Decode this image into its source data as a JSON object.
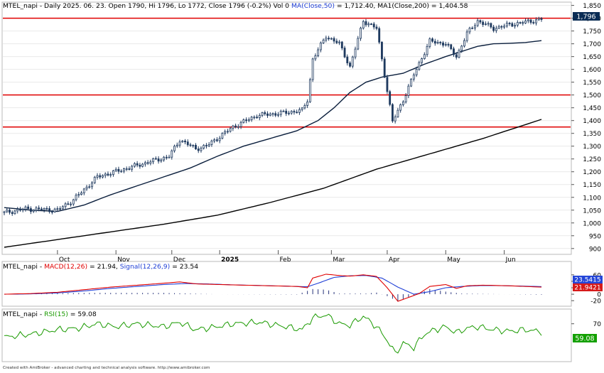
{
  "chart_data": [
    {
      "type": "candlestick",
      "panel": "price",
      "header": {
        "symbol": "MTEL_napi",
        "rest": " - Daily 2025. 06. 23. Open 1790, Hi 1796, Lo 1772, Close 1796 (-0.2%) Vol 0 ",
        "ma_label": "MA(Close,50)",
        "ma_value": " = 1,712.40, ",
        "ma1_label": "MA1(Close,200)",
        "ma1_value": " = 1,404.58"
      },
      "ylim": [
        880,
        1860
      ],
      "y_ticks": [
        900,
        950,
        1000,
        1050,
        1100,
        1150,
        1200,
        1250,
        1300,
        1350,
        1400,
        1450,
        1500,
        1550,
        1600,
        1650,
        1700,
        1750,
        1800,
        1850
      ],
      "y_tick_labels": [
        "900",
        "950",
        "1,000",
        "1,050",
        "1,100",
        "1,150",
        "1,200",
        "1,250",
        "1,300",
        "1,350",
        "1,400",
        "1,450",
        "1,500",
        "1,550",
        "1,600",
        "1,650",
        "1,700",
        "1,750",
        "1,800",
        "1,850"
      ],
      "x_ticks": [
        {
          "day": 20,
          "label": "Oct",
          "bold": false
        },
        {
          "day": 42,
          "label": "Nov",
          "bold": false
        },
        {
          "day": 63,
          "label": "Dec",
          "bold": false
        },
        {
          "day": 81,
          "label": "2025",
          "bold": true
        },
        {
          "day": 103,
          "label": "Feb",
          "bold": false
        },
        {
          "day": 123,
          "label": "Mar",
          "bold": false
        },
        {
          "day": 144,
          "label": "Apr",
          "bold": false
        },
        {
          "day": 166,
          "label": "May",
          "bold": false
        },
        {
          "day": 188,
          "label": "Jun",
          "bold": false
        }
      ],
      "hlines": [
        1800,
        1500,
        1375
      ],
      "last_price_label": "1,796",
      "days": 203,
      "close_anchors": [
        [
          0,
          1040
        ],
        [
          8,
          1055
        ],
        [
          20,
          1050
        ],
        [
          26,
          1090
        ],
        [
          35,
          1180
        ],
        [
          45,
          1210
        ],
        [
          55,
          1240
        ],
        [
          62,
          1260
        ],
        [
          66,
          1325
        ],
        [
          72,
          1290
        ],
        [
          76,
          1300
        ],
        [
          86,
          1375
        ],
        [
          95,
          1420
        ],
        [
          105,
          1430
        ],
        [
          112,
          1440
        ],
        [
          114,
          1480
        ],
        [
          116,
          1640
        ],
        [
          121,
          1730
        ],
        [
          126,
          1700
        ],
        [
          130,
          1610
        ],
        [
          135,
          1790
        ],
        [
          140,
          1760
        ],
        [
          142,
          1640
        ],
        [
          146,
          1395
        ],
        [
          150,
          1480
        ],
        [
          154,
          1580
        ],
        [
          160,
          1710
        ],
        [
          166,
          1700
        ],
        [
          170,
          1650
        ],
        [
          174,
          1740
        ],
        [
          178,
          1790
        ],
        [
          184,
          1760
        ],
        [
          190,
          1775
        ],
        [
          196,
          1785
        ],
        [
          202,
          1796
        ]
      ],
      "ma50_anchors": [
        [
          0,
          1060
        ],
        [
          10,
          1050
        ],
        [
          20,
          1045
        ],
        [
          30,
          1070
        ],
        [
          40,
          1110
        ],
        [
          50,
          1145
        ],
        [
          60,
          1180
        ],
        [
          70,
          1215
        ],
        [
          80,
          1260
        ],
        [
          90,
          1300
        ],
        [
          100,
          1330
        ],
        [
          110,
          1360
        ],
        [
          118,
          1400
        ],
        [
          124,
          1450
        ],
        [
          130,
          1510
        ],
        [
          136,
          1550
        ],
        [
          142,
          1570
        ],
        [
          150,
          1585
        ],
        [
          158,
          1620
        ],
        [
          166,
          1650
        ],
        [
          172,
          1670
        ],
        [
          178,
          1690
        ],
        [
          184,
          1700
        ],
        [
          190,
          1702
        ],
        [
          196,
          1705
        ],
        [
          202,
          1712.4
        ]
      ],
      "ma200_anchors": [
        [
          0,
          905
        ],
        [
          20,
          935
        ],
        [
          40,
          965
        ],
        [
          60,
          995
        ],
        [
          80,
          1030
        ],
        [
          100,
          1080
        ],
        [
          120,
          1135
        ],
        [
          140,
          1210
        ],
        [
          160,
          1270
        ],
        [
          180,
          1330
        ],
        [
          202,
          1404.58
        ]
      ]
    },
    {
      "type": "line",
      "panel": "macd",
      "header": {
        "symbol": "MTEL_napi",
        "macd_label": "MACD(12,26)",
        "macd_value": " = 21.94, ",
        "signal_label": "Signal(12,26,9)",
        "signal_value": " = 23.54"
      },
      "ylim": [
        -35,
        75
      ],
      "y_ticks": [
        -20,
        0,
        20,
        40,
        60
      ],
      "y_tick_labels": [
        "-20",
        "0",
        "20",
        "40",
        "60"
      ],
      "signal_value_label": "23.5415",
      "macd_value_label": "21.9421",
      "macd_anchors": [
        [
          0,
          0
        ],
        [
          10,
          2
        ],
        [
          20,
          6
        ],
        [
          30,
          14
        ],
        [
          40,
          22
        ],
        [
          50,
          28
        ],
        [
          60,
          34
        ],
        [
          66,
          38
        ],
        [
          72,
          32
        ],
        [
          80,
          30
        ],
        [
          90,
          28
        ],
        [
          100,
          26
        ],
        [
          110,
          24
        ],
        [
          114,
          20
        ],
        [
          116,
          50
        ],
        [
          121,
          62
        ],
        [
          126,
          58
        ],
        [
          130,
          56
        ],
        [
          135,
          60
        ],
        [
          140,
          55
        ],
        [
          144,
          20
        ],
        [
          148,
          -22
        ],
        [
          152,
          -10
        ],
        [
          156,
          2
        ],
        [
          160,
          24
        ],
        [
          166,
          30
        ],
        [
          170,
          18
        ],
        [
          174,
          26
        ],
        [
          180,
          28
        ],
        [
          190,
          26
        ],
        [
          202,
          21.94
        ]
      ],
      "signal_anchors": [
        [
          0,
          0
        ],
        [
          10,
          1
        ],
        [
          20,
          4
        ],
        [
          30,
          10
        ],
        [
          40,
          18
        ],
        [
          50,
          24
        ],
        [
          60,
          30
        ],
        [
          68,
          33
        ],
        [
          76,
          32
        ],
        [
          86,
          29
        ],
        [
          96,
          27
        ],
        [
          106,
          25
        ],
        [
          114,
          23
        ],
        [
          118,
          34
        ],
        [
          124,
          52
        ],
        [
          130,
          57
        ],
        [
          136,
          58
        ],
        [
          142,
          50
        ],
        [
          148,
          22
        ],
        [
          154,
          0
        ],
        [
          160,
          8
        ],
        [
          166,
          20
        ],
        [
          172,
          24
        ],
        [
          180,
          27
        ],
        [
          190,
          26
        ],
        [
          202,
          23.54
        ]
      ],
      "hist_anchors": [
        [
          0,
          0
        ],
        [
          30,
          4
        ],
        [
          60,
          4
        ],
        [
          80,
          0
        ],
        [
          110,
          -1
        ],
        [
          116,
          16
        ],
        [
          121,
          14
        ],
        [
          126,
          2
        ],
        [
          136,
          2
        ],
        [
          140,
          5
        ],
        [
          144,
          -6
        ],
        [
          148,
          -22
        ],
        [
          152,
          -10
        ],
        [
          156,
          2
        ],
        [
          160,
          16
        ],
        [
          166,
          8
        ],
        [
          172,
          2
        ],
        [
          202,
          -1.6
        ]
      ]
    },
    {
      "type": "line",
      "panel": "rsi",
      "header": {
        "symbol": "MTEL_napi",
        "rsi_label": "RSI(15)",
        "rsi_value": " = 59.08"
      },
      "ylim": [
        20,
        85
      ],
      "y_ticks": [
        70
      ],
      "y_tick_labels": [
        "70"
      ],
      "rsi_value_label": "59.08",
      "rsi_anchors": [
        [
          0,
          52
        ],
        [
          10,
          56
        ],
        [
          20,
          62
        ],
        [
          28,
          64
        ],
        [
          35,
          70
        ],
        [
          42,
          66
        ],
        [
          50,
          70
        ],
        [
          60,
          66
        ],
        [
          66,
          72
        ],
        [
          72,
          62
        ],
        [
          80,
          66
        ],
        [
          86,
          70
        ],
        [
          96,
          72
        ],
        [
          106,
          66
        ],
        [
          112,
          62
        ],
        [
          116,
          78
        ],
        [
          121,
          82
        ],
        [
          126,
          70
        ],
        [
          130,
          68
        ],
        [
          135,
          80
        ],
        [
          140,
          66
        ],
        [
          144,
          48
        ],
        [
          147,
          30
        ],
        [
          150,
          44
        ],
        [
          154,
          38
        ],
        [
          158,
          56
        ],
        [
          162,
          62
        ],
        [
          166,
          66
        ],
        [
          170,
          58
        ],
        [
          174,
          64
        ],
        [
          178,
          66
        ],
        [
          184,
          62
        ],
        [
          190,
          60
        ],
        [
          196,
          62
        ],
        [
          202,
          59.08
        ]
      ]
    }
  ],
  "footer": {
    "credit": "Created with AmiBroker - advanced charting and technical analysis software. http://www.amibroker.com"
  },
  "colors": {
    "candle": "#1f3a5f",
    "ma50": "#0a1e3c",
    "ma200": "#000000",
    "hline": "#e00000",
    "macd": "#e00000",
    "signal": "#1f3fd6",
    "hist": "#27337a",
    "rsi": "#1a9a00",
    "badge_price": "#0b2d55",
    "badge_signal": "#2446d8",
    "badge_macd": "#d61a1a",
    "badge_rsi": "#13a000"
  }
}
